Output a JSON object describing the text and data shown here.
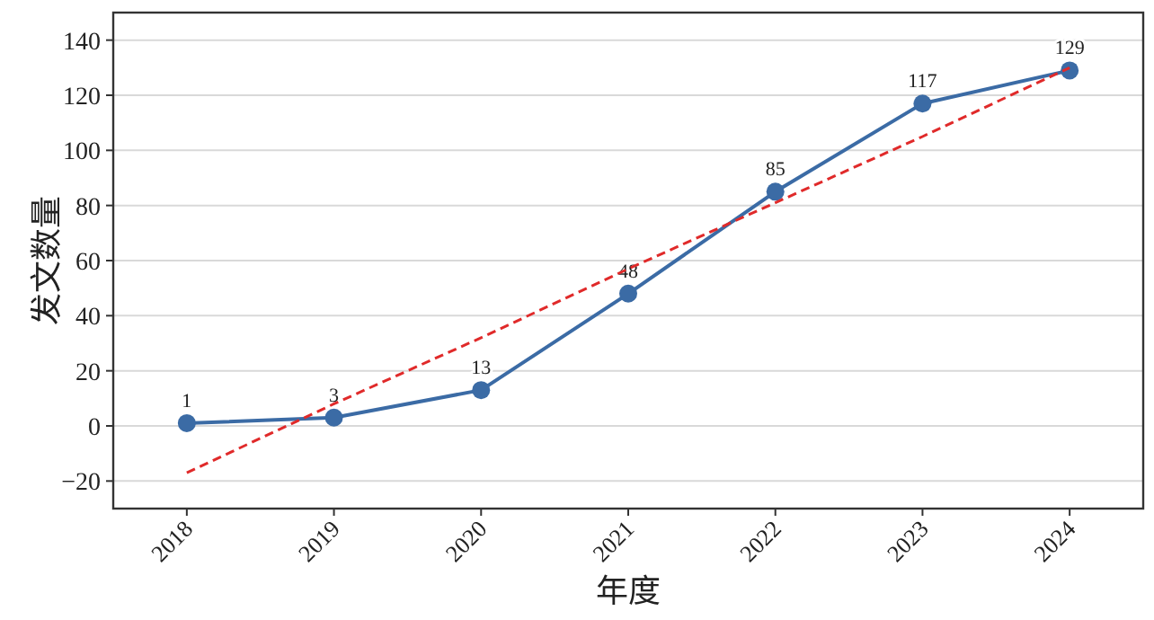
{
  "chart_data": {
    "type": "line",
    "xlabel": "年度",
    "ylabel": "发文数量",
    "categories": [
      "2018",
      "2019",
      "2020",
      "2021",
      "2022",
      "2023",
      "2024"
    ],
    "series": [
      {
        "type": "line",
        "color": "#3b6ba5",
        "values": [
          1,
          3,
          13,
          48,
          85,
          117,
          129
        ],
        "marker": "circle",
        "line_style": "solid",
        "data_labels": true
      },
      {
        "type": "line",
        "color": "#e02a2a",
        "values": [
          -17,
          8,
          32,
          57,
          81,
          105,
          130
        ],
        "marker": "none",
        "line_style": "dashed"
      }
    ],
    "ylim": [
      -30,
      150
    ],
    "yticks": [
      -20,
      0,
      20,
      40,
      60,
      80,
      100,
      120,
      140
    ],
    "grid": "y"
  }
}
